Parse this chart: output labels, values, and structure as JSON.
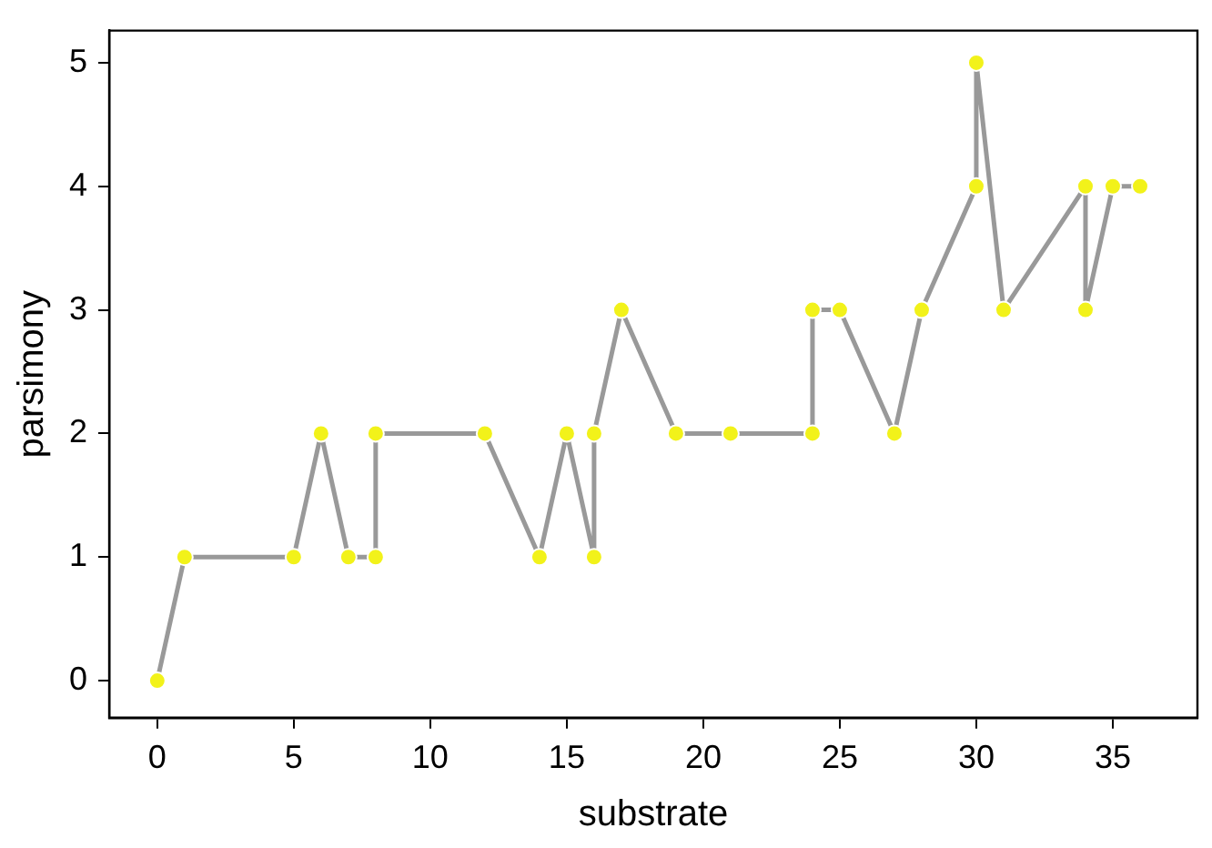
{
  "chart_data": {
    "type": "line",
    "xlabel": "substrate",
    "ylabel": "parsimony",
    "x": [
      0,
      1,
      5,
      6,
      7,
      8,
      8,
      12,
      14,
      15,
      16,
      16,
      17,
      19,
      21,
      24,
      24,
      25,
      27,
      28,
      30,
      30,
      31,
      34,
      34,
      35,
      36
    ],
    "series": [
      {
        "color": "#999999",
        "values": [
          0,
          1,
          1,
          2,
          1,
          1,
          2,
          2,
          1,
          2,
          1,
          2,
          3,
          2,
          2,
          2,
          3,
          3,
          2,
          3,
          4,
          5,
          3,
          4,
          3,
          4,
          4
        ]
      }
    ],
    "marker": "circle",
    "line_style": "solid",
    "grid": false,
    "legend": false,
    "xlim": [
      -1.76,
      38.1
    ],
    "xticks": [
      0,
      5,
      10,
      15,
      20,
      25,
      30,
      35
    ],
    "ylim": [
      -0.3,
      5.26
    ],
    "yticks": [
      0,
      1,
      2,
      3,
      4,
      5
    ]
  }
}
